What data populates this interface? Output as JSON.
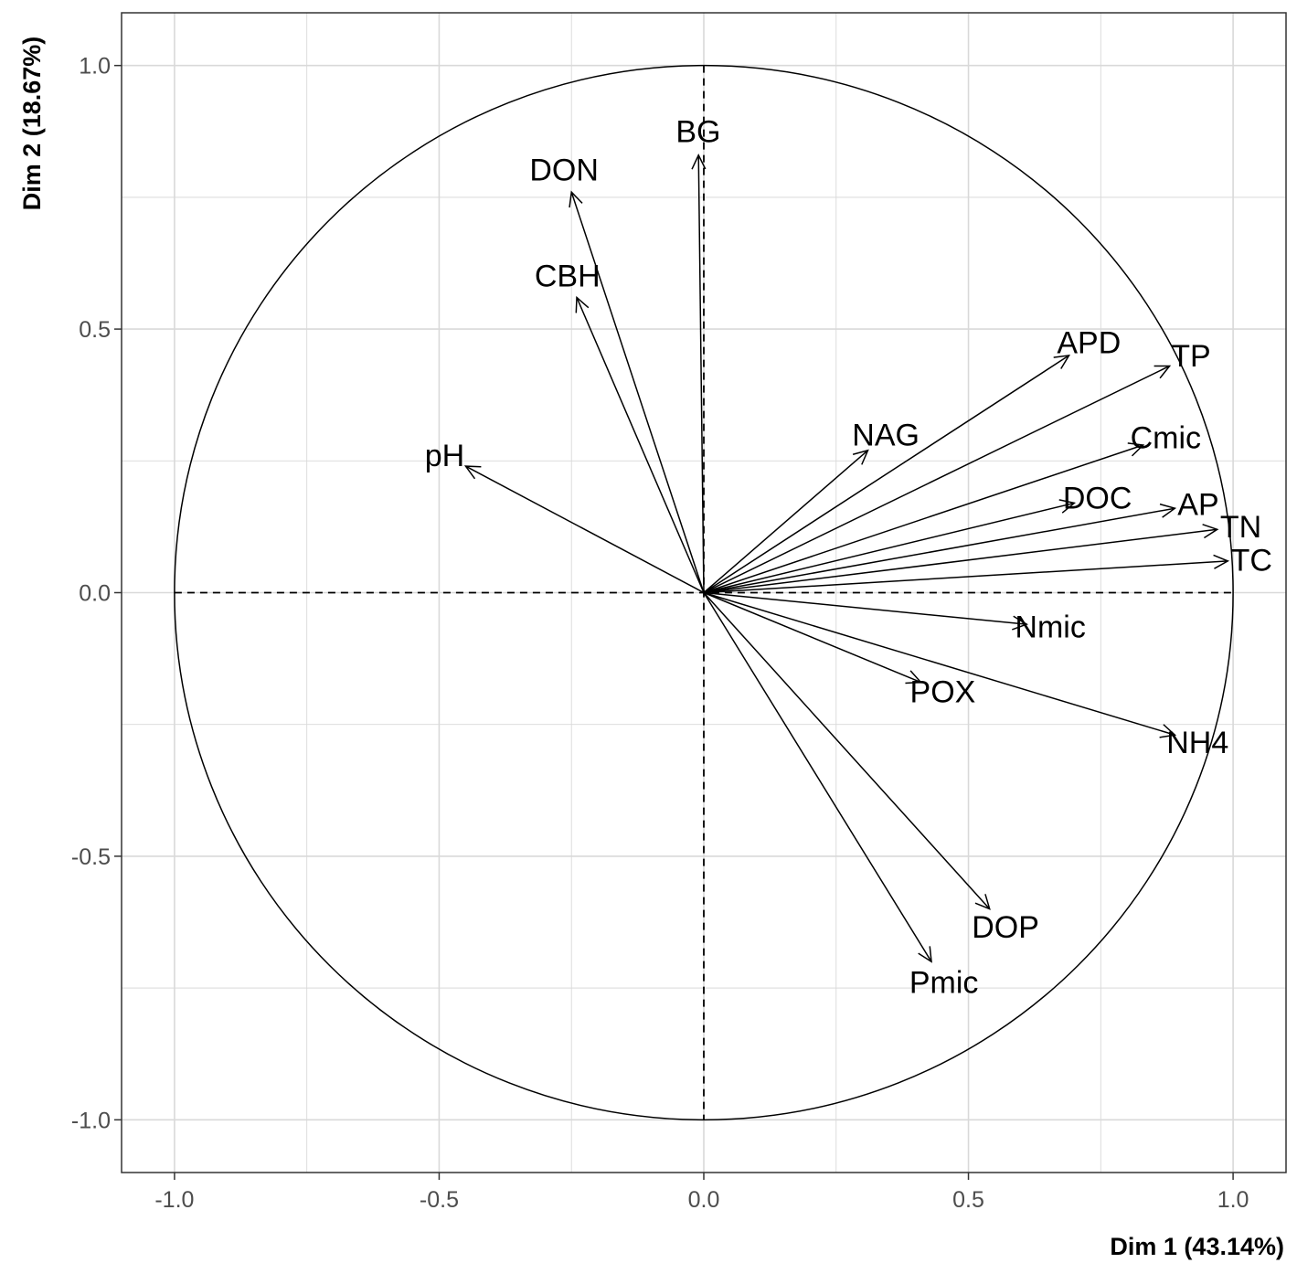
{
  "chart_data": {
    "type": "scatter",
    "subtype": "pca-correlation-circle",
    "xlabel": "Dim 1 (43.14%)",
    "ylabel": "Dim 2 (18.67%)",
    "xlim": [
      -1.1,
      1.1
    ],
    "ylim": [
      -1.1,
      1.1
    ],
    "x_ticks": [
      -1.0,
      -0.5,
      0.0,
      0.5,
      1.0
    ],
    "y_ticks": [
      -1.0,
      -0.5,
      0.0,
      0.5,
      1.0
    ],
    "x_tick_labels": [
      "-1.0",
      "-0.5",
      "0.0",
      "0.5",
      "1.0"
    ],
    "y_tick_labels": [
      "-1.0",
      "-0.5",
      "0.0",
      "0.5",
      "1.0"
    ],
    "grid": true,
    "unit_circle": true,
    "reference_lines": "dashed at x=0 and y=0",
    "arrow_color": "#000000",
    "grid_color": "#d9d9d9",
    "vectors": [
      {
        "name": "BG",
        "x": -0.01,
        "y": 0.83
      },
      {
        "name": "DON",
        "x": -0.25,
        "y": 0.76
      },
      {
        "name": "CBH",
        "x": -0.24,
        "y": 0.56
      },
      {
        "name": "pH",
        "x": -0.45,
        "y": 0.24
      },
      {
        "name": "APD",
        "x": 0.69,
        "y": 0.45
      },
      {
        "name": "TP",
        "x": 0.88,
        "y": 0.43
      },
      {
        "name": "Cmic",
        "x": 0.83,
        "y": 0.28
      },
      {
        "name": "NAG",
        "x": 0.31,
        "y": 0.27
      },
      {
        "name": "AP",
        "x": 0.89,
        "y": 0.16
      },
      {
        "name": "DOC",
        "x": 0.7,
        "y": 0.17
      },
      {
        "name": "TN",
        "x": 0.97,
        "y": 0.12
      },
      {
        "name": "TC",
        "x": 0.99,
        "y": 0.06
      },
      {
        "name": "Nmic",
        "x": 0.61,
        "y": -0.06
      },
      {
        "name": "POX",
        "x": 0.41,
        "y": -0.17
      },
      {
        "name": "NH4",
        "x": 0.89,
        "y": -0.27
      },
      {
        "name": "DOP",
        "x": 0.54,
        "y": -0.6
      },
      {
        "name": "Pmic",
        "x": 0.43,
        "y": -0.7
      }
    ]
  }
}
